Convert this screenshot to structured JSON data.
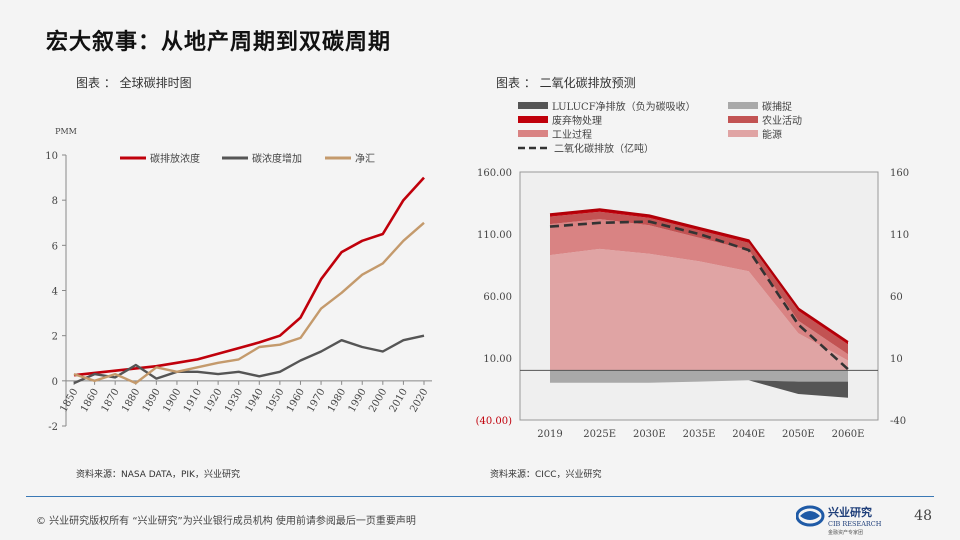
{
  "slide": {
    "title": "宏大叙事：从地产周期到双碳周期",
    "page_number": "48",
    "footer": "©  兴业研究版权所有   “兴业研究”为兴业银行成员机构   使用前请参阅最后一页重要声明",
    "logo": {
      "brand_cn": "兴业研究",
      "brand_en": "CIB RESEARCH",
      "tagline": "金融资产专家团"
    }
  },
  "left_panel": {
    "caption": "图表 ： 全球碳排时图",
    "source": "资料来源：NASA DATA，PIK，兴业研究"
  },
  "right_panel": {
    "caption": "图表 ： 二氧化碳排放预测",
    "source": "资料来源：CICC，兴业研究"
  },
  "chart_data": [
    {
      "type": "line",
      "ylabel": "PMM",
      "ylim": [
        -2,
        10
      ],
      "yticks": [
        "10",
        "8",
        "6",
        "4",
        "2",
        "0",
        "-2"
      ],
      "grid": false,
      "legend_position": "top",
      "x": [
        "1850",
        "1860",
        "1870",
        "1880",
        "1890",
        "1900",
        "1910",
        "1920",
        "1930",
        "1940",
        "1950",
        "1960",
        "1970",
        "1980",
        "1990",
        "2000",
        "2010",
        "2020"
      ],
      "series": [
        {
          "name": "碳排放浓度",
          "color": "#c0000b",
          "values": [
            0.25,
            0.35,
            0.45,
            0.55,
            0.65,
            0.8,
            0.95,
            1.2,
            1.45,
            1.7,
            2.0,
            2.8,
            4.5,
            5.7,
            6.2,
            6.5,
            8.0,
            9.0
          ]
        },
        {
          "name": "碳浓度增加",
          "color": "#555555",
          "values": [
            -0.1,
            0.3,
            0.15,
            0.7,
            0.1,
            0.4,
            0.4,
            0.3,
            0.4,
            0.2,
            0.4,
            0.9,
            1.3,
            1.8,
            1.5,
            1.3,
            1.8,
            2.0
          ]
        },
        {
          "name": "净汇",
          "color": "#c49a6c",
          "values": [
            0.3,
            0.0,
            0.3,
            -0.1,
            0.6,
            0.4,
            0.6,
            0.8,
            0.95,
            1.5,
            1.6,
            1.9,
            3.2,
            3.9,
            4.7,
            5.2,
            6.2,
            7.0
          ]
        }
      ]
    },
    {
      "type": "area",
      "categories": [
        "2019",
        "2025E",
        "2030E",
        "2035E",
        "2040E",
        "2050E",
        "2060E"
      ],
      "ylim": [
        -40,
        160
      ],
      "left_yticks": [
        "160.00",
        "110.00",
        "60.00",
        "10.00",
        "(40.00)"
      ],
      "right_yticks": [
        "160",
        "110",
        "60",
        "10",
        "-40"
      ],
      "legend_position": "top",
      "stacked_positive": [
        {
          "name": "能源",
          "color": "#e0a4a4",
          "values": [
            93,
            98,
            94,
            88,
            80,
            30,
            8
          ]
        },
        {
          "name": "工业过程",
          "color": "#d98383",
          "values": [
            25,
            24,
            23,
            19,
            17,
            10,
            5
          ]
        },
        {
          "name": "农业活动",
          "color": "#c25353",
          "values": [
            6,
            6,
            6,
            6,
            6,
            8,
            8
          ]
        },
        {
          "name": "废弃物处理",
          "color": "#c0000b",
          "values": [
            2,
            2,
            2,
            2,
            2,
            2,
            2
          ]
        }
      ],
      "stacked_negative": [
        {
          "name": "碳捕捉",
          "color": "#a9a9a9",
          "values": [
            -10,
            -10,
            -10,
            -9,
            -8,
            -9,
            -9
          ]
        },
        {
          "name": "LULUCF净排放（负为碳吸收）",
          "color": "#555555",
          "values": [
            0,
            0,
            0,
            0,
            0,
            -10,
            -13
          ]
        }
      ],
      "line_series": [
        {
          "name": "二氧化碳排放（亿吨）",
          "color": "#333333",
          "style": "dashed",
          "values": [
            116,
            119,
            120,
            110,
            97,
            37,
            1
          ]
        }
      ]
    }
  ]
}
